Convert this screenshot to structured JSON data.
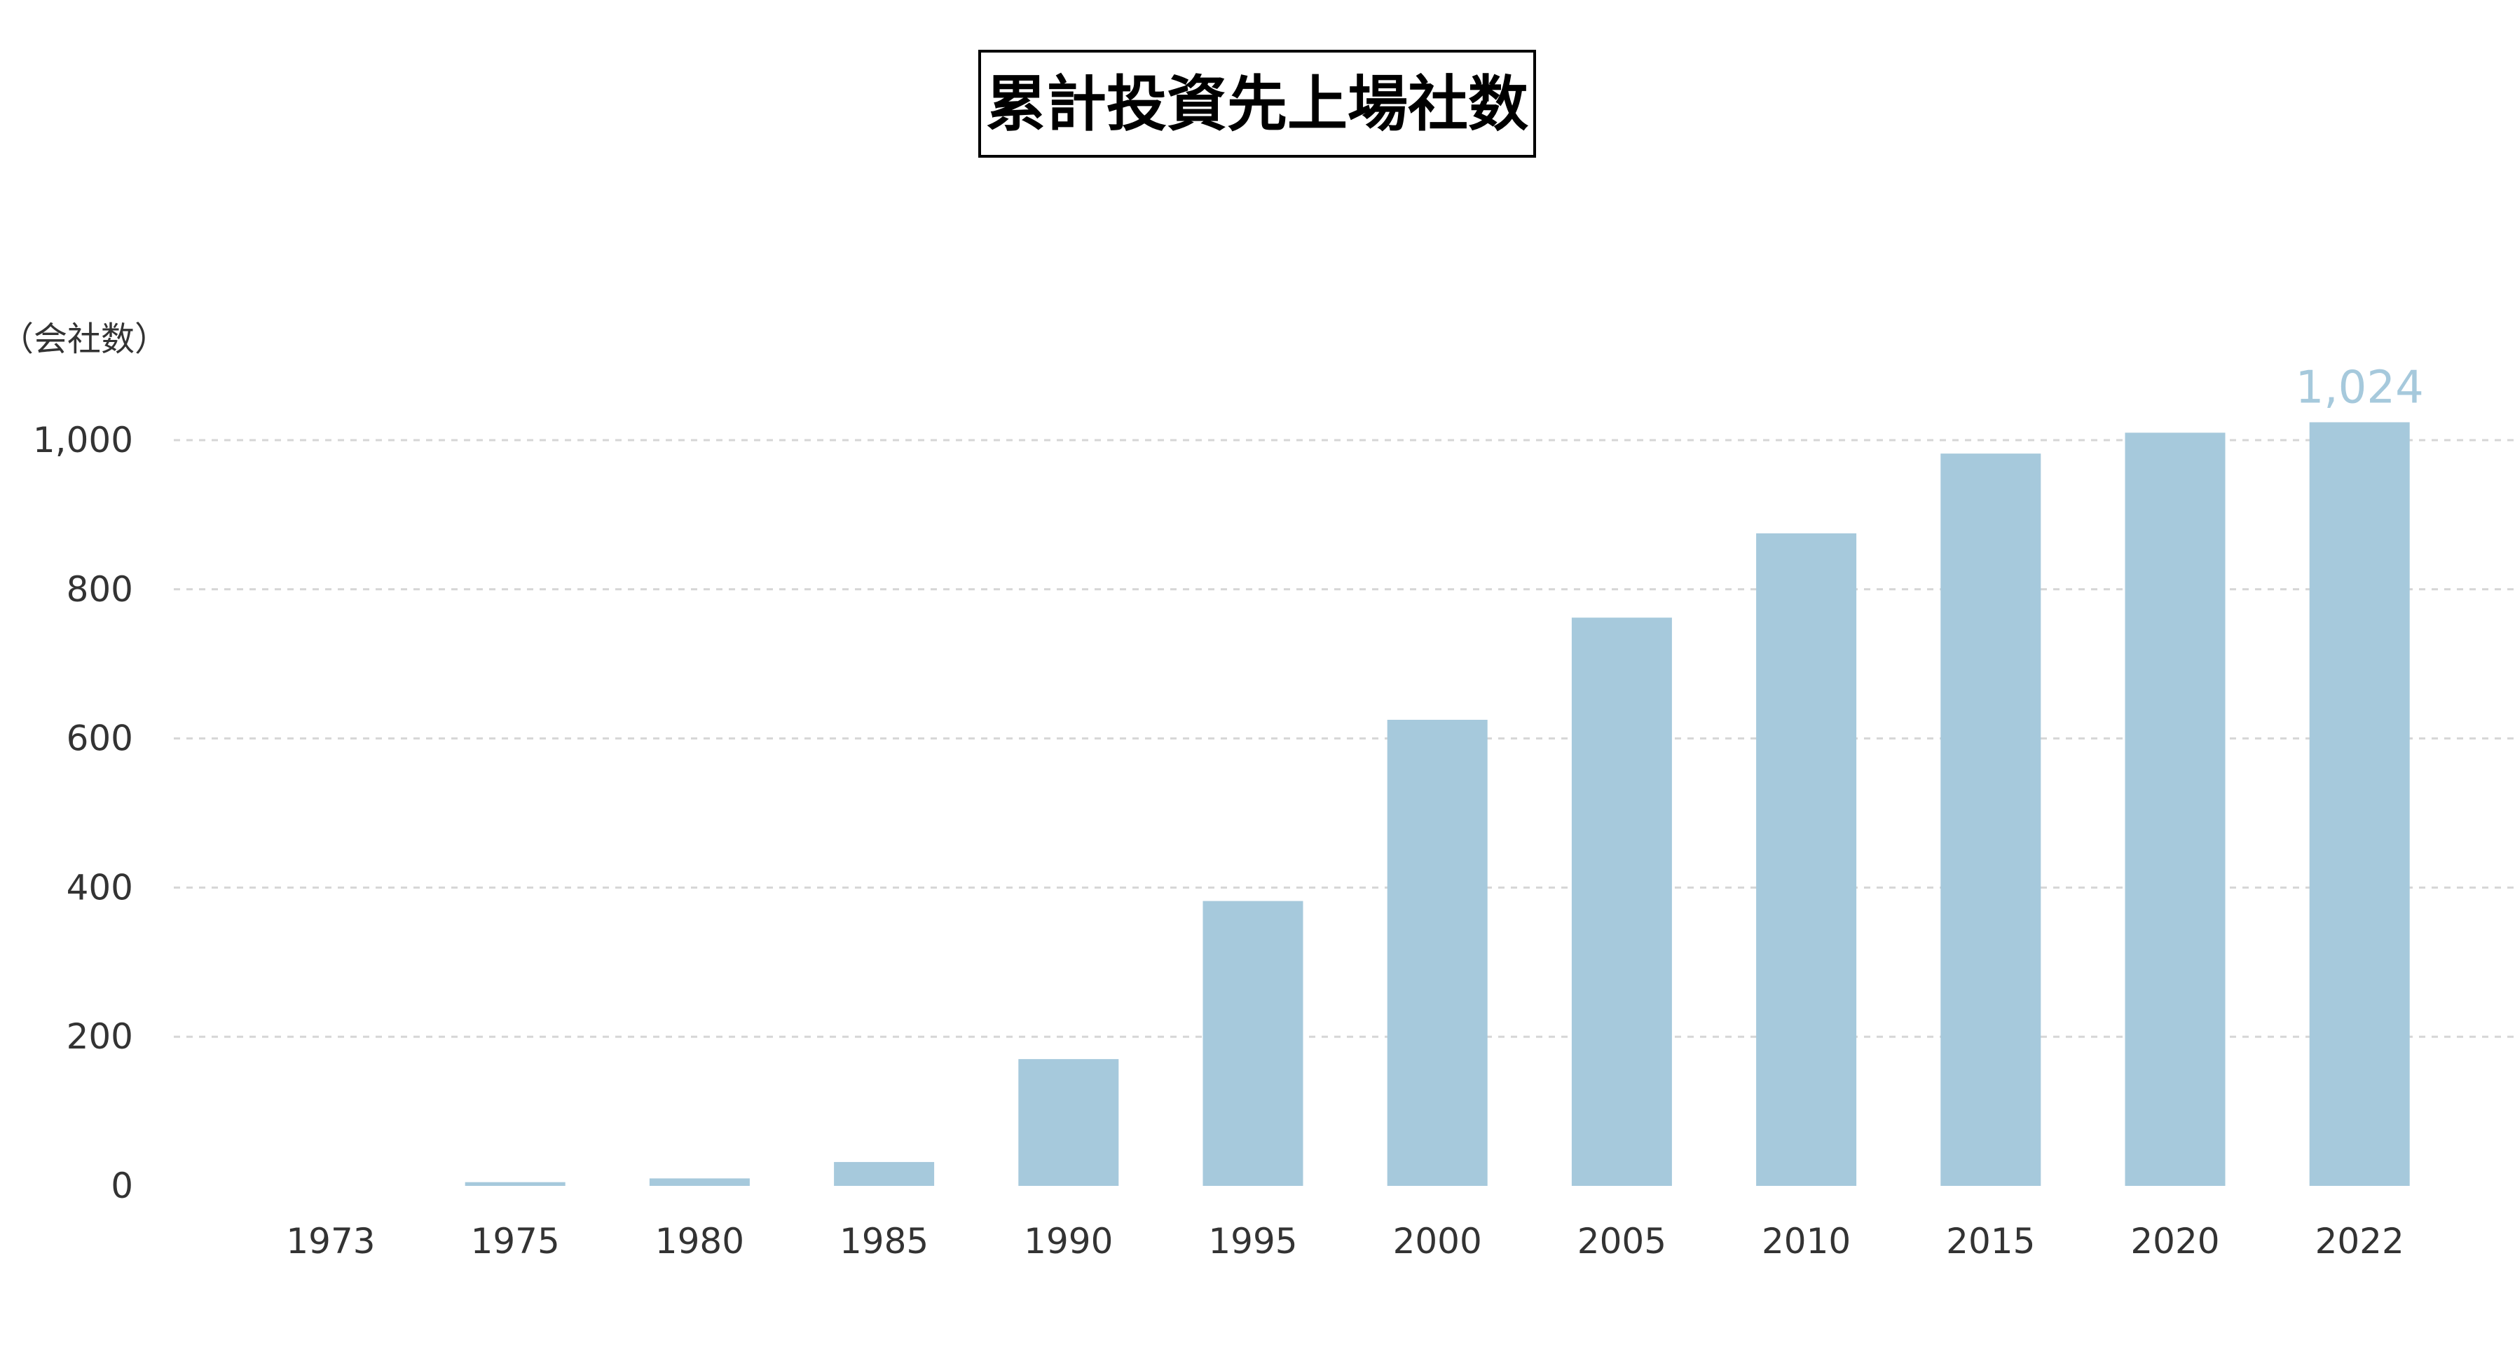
{
  "chart_data": {
    "type": "bar",
    "title": "累計投資先上場社数",
    "ylabel": "（会社数）",
    "xlabel": "",
    "categories": [
      "1973",
      "1975",
      "1980",
      "1985",
      "1990",
      "1995",
      "2000",
      "2005",
      "2010",
      "2015",
      "2020",
      "2022"
    ],
    "values": [
      0,
      5,
      10,
      32,
      170,
      382,
      625,
      762,
      875,
      982,
      1010,
      1024
    ],
    "ylim": [
      0,
      1000
    ],
    "yticks": [
      0,
      200,
      400,
      600,
      800,
      1000
    ],
    "ytick_labels": [
      "0",
      "200",
      "400",
      "600",
      "800",
      "1,000"
    ],
    "data_labels": [
      {
        "index": 11,
        "text": "1,024"
      }
    ],
    "grid": true,
    "legend": "none",
    "colors": {
      "bar": "#a6c9dc",
      "label": "#a6c9dc"
    }
  }
}
